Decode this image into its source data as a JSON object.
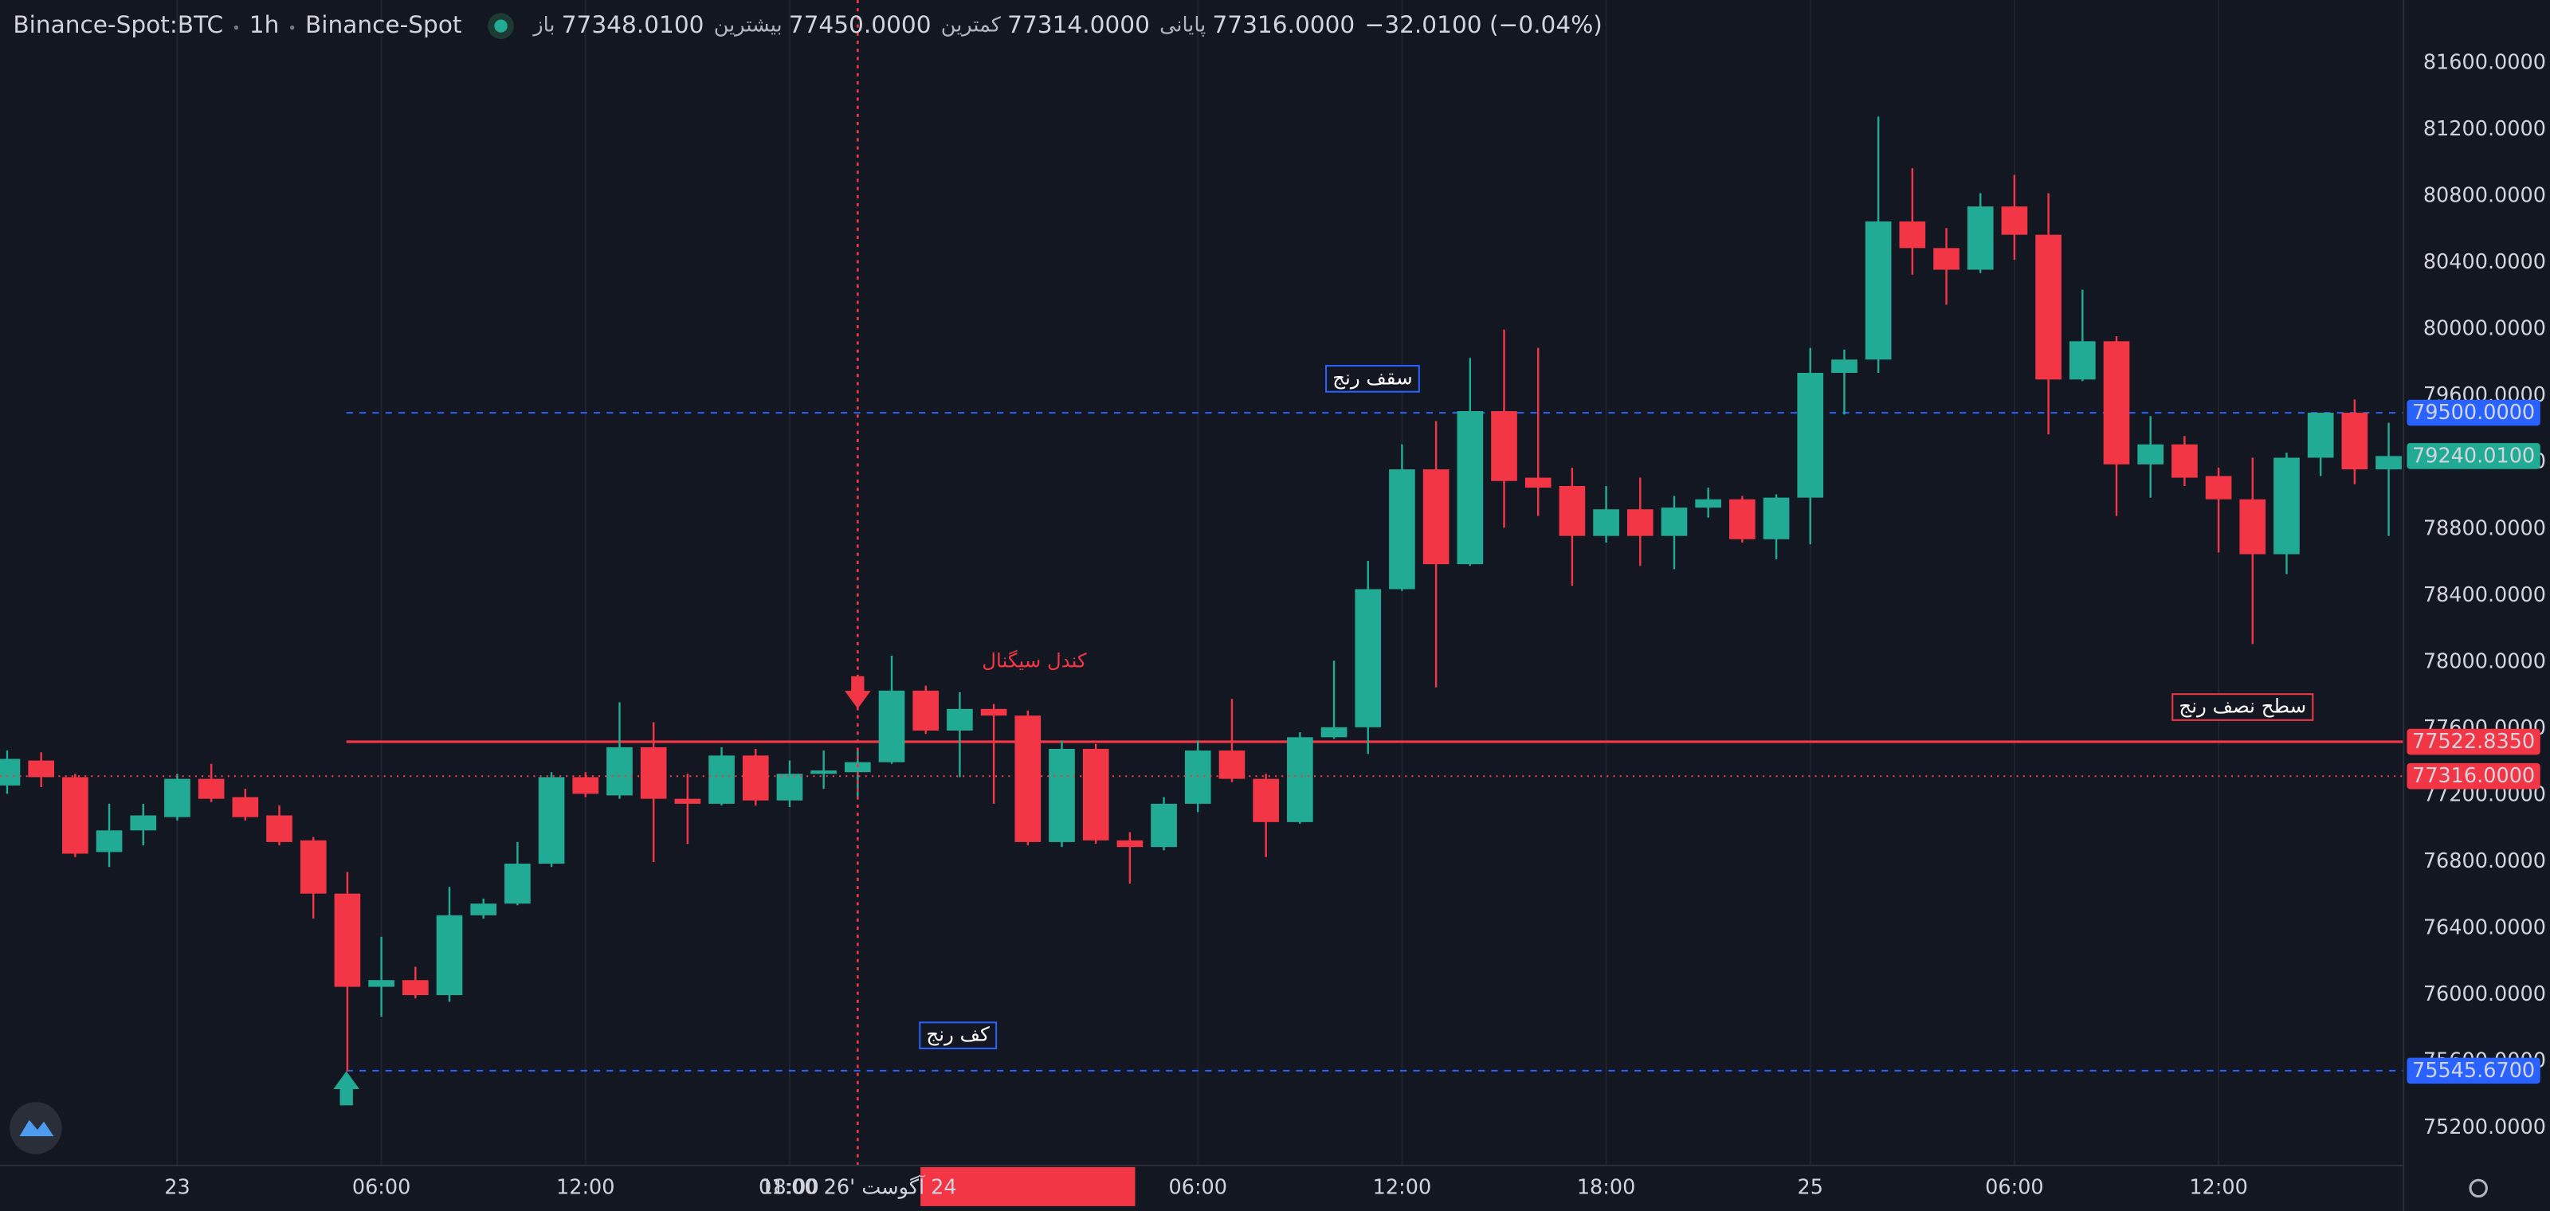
{
  "header": {
    "symbol": "Binance-Spot:BTC",
    "interval": "1h",
    "exchange": "Binance-Spot",
    "ohlc": [
      {
        "label": "باز",
        "value": "77348.0100"
      },
      {
        "label": "بیشترین",
        "value": "77450.0000"
      },
      {
        "label": "کمترین",
        "value": "77314.0000"
      },
      {
        "label": "پایانی",
        "value": "77316.0000"
      }
    ],
    "change": "−32.0100 (−0.04%)"
  },
  "chart_data": {
    "type": "candlestick",
    "up_color": "#22ab94",
    "down_color": "#f23645",
    "grid": true,
    "categories": [
      null,
      null,
      null,
      null,
      null,
      "23",
      null,
      null,
      null,
      null,
      null,
      "06:00",
      null,
      null,
      null,
      null,
      null,
      "12:00",
      null,
      null,
      null,
      null,
      null,
      "18:00",
      null,
      null,
      null,
      null,
      null,
      null,
      null,
      null,
      null,
      null,
      null,
      "06:00",
      null,
      null,
      null,
      null,
      null,
      "12:00",
      null,
      null,
      null,
      null,
      null,
      "18:00",
      null,
      null,
      null,
      null,
      null,
      "25",
      null,
      null,
      null,
      null,
      null,
      "06:00",
      null,
      null,
      null,
      null,
      null,
      "12:00",
      null,
      null,
      null,
      null,
      null
    ],
    "open": [
      77260,
      77410,
      77310,
      76860,
      76990,
      77070,
      77300,
      77190,
      77080,
      76930,
      76610,
      76050,
      76090,
      76000,
      76480,
      76550,
      76790,
      77310,
      77200,
      77490,
      77180,
      77150,
      77440,
      77170,
      77330,
      77340,
      77400,
      77830,
      77590,
      77720,
      77680,
      76920,
      77480,
      76930,
      76890,
      77150,
      77470,
      77300,
      77040,
      77550,
      77610,
      78440,
      79160,
      78590,
      79510,
      79110,
      79060,
      78760,
      78920,
      78760,
      78930,
      78980,
      78740,
      78990,
      79740,
      79820,
      80650,
      80490,
      80360,
      80740,
      80570,
      79700,
      79930,
      79190,
      79310,
      79120,
      78980,
      78650,
      79230,
      79500,
      79160
    ],
    "high": [
      77470,
      77460,
      77330,
      77150,
      77150,
      77330,
      77390,
      77240,
      77140,
      76950,
      76740,
      76350,
      76170,
      76650,
      76580,
      76920,
      77340,
      77340,
      77760,
      77640,
      77330,
      77490,
      77480,
      77410,
      77470,
      77470,
      78040,
      77860,
      77820,
      77750,
      77710,
      77530,
      77510,
      76980,
      77190,
      77530,
      77780,
      77330,
      77580,
      78010,
      78610,
      79310,
      79450,
      79830,
      80000,
      79890,
      79170,
      79060,
      79110,
      79000,
      79050,
      79000,
      79010,
      79890,
      79880,
      81280,
      80970,
      80610,
      80820,
      80930,
      80820,
      80240,
      79960,
      79480,
      79360,
      79170,
      79230,
      79260,
      79500,
      79580,
      79440
    ],
    "low": [
      77210,
      77250,
      76830,
      76770,
      76900,
      77050,
      77160,
      77050,
      76900,
      76460,
      75540,
      75870,
      75980,
      75960,
      76460,
      76540,
      76770,
      77190,
      77180,
      76800,
      76910,
      77140,
      77140,
      77130,
      77240,
      77190,
      77390,
      77570,
      77310,
      77150,
      76900,
      76890,
      76910,
      76670,
      76870,
      77100,
      77280,
      76830,
      77030,
      77540,
      77450,
      78430,
      77850,
      78580,
      78810,
      78880,
      78460,
      78720,
      78580,
      78560,
      78870,
      78720,
      78620,
      78710,
      79490,
      79740,
      80330,
      80150,
      80340,
      80420,
      79370,
      79690,
      78880,
      78990,
      79060,
      78660,
      78110,
      78530,
      79120,
      79070,
      78760
    ],
    "close": [
      77420,
      77310,
      76850,
      76990,
      77080,
      77300,
      77180,
      77070,
      76920,
      76610,
      76050,
      76090,
      76000,
      76480,
      76550,
      76790,
      77310,
      77210,
      77490,
      77180,
      77150,
      77440,
      77170,
      77330,
      77350,
      77400,
      77830,
      77590,
      77720,
      77680,
      76920,
      77480,
      76930,
      76890,
      77150,
      77470,
      77300,
      77040,
      77550,
      77610,
      78440,
      79160,
      78590,
      79510,
      79090,
      79050,
      78760,
      78920,
      78760,
      78930,
      78980,
      78740,
      78990,
      79740,
      79820,
      80650,
      80490,
      80360,
      80740,
      80570,
      79700,
      79930,
      79190,
      79310,
      79110,
      78980,
      78650,
      79230,
      79500,
      79160,
      79240.01
    ],
    "ylim": [
      74976,
      81981
    ],
    "yticks": [
      {
        "value": 75200,
        "label": "75200.0000"
      },
      {
        "value": 75600,
        "label": "75600.0000"
      },
      {
        "value": 76000,
        "label": "76000.0000"
      },
      {
        "value": 76400,
        "label": "76400.0000"
      },
      {
        "value": 76800,
        "label": "76800.0000"
      },
      {
        "value": 77200,
        "label": "77200.0000"
      },
      {
        "value": 77600,
        "label": "77600.0000"
      },
      {
        "value": 78000,
        "label": "78000.0000"
      },
      {
        "value": 78400,
        "label": "78400.0000"
      },
      {
        "value": 78800,
        "label": "78800.0000"
      },
      {
        "value": 79200,
        "label": "79200.0000"
      },
      {
        "value": 79600,
        "label": "79600.0000"
      },
      {
        "value": 80000,
        "label": "80000.0000"
      },
      {
        "value": 80400,
        "label": "80400.0000"
      },
      {
        "value": 80800,
        "label": "80800.0000"
      },
      {
        "value": 81200,
        "label": "81200.0000"
      },
      {
        "value": 81600,
        "label": "81600.0000"
      }
    ],
    "levels": [
      {
        "value": 79500,
        "label": "79500.0000",
        "color": "#2962ff",
        "style": "dashed"
      },
      {
        "value": 77522.835,
        "label": "77522.8350",
        "color": "#f23645",
        "style": "solid"
      },
      {
        "value": 75545.67,
        "label": "75545.6700",
        "color": "#2962ff",
        "style": "dashed"
      }
    ],
    "last_price": {
      "value": 79240.01,
      "label": "79240.0100",
      "color": "#22ab94"
    },
    "crosshair": {
      "value": 77316,
      "label": "77316.0000",
      "time": "24 آگوست '26 01:00",
      "color": "#f23645"
    },
    "annotations": [
      {
        "text": "سقف رنج",
        "color": "#2962ff"
      },
      {
        "text": "کف رنج",
        "color": "#2962ff"
      },
      {
        "text": "سطح نصف رنج",
        "color": "#f23645"
      },
      {
        "text": "کندل سیگنال",
        "color": "#f23645"
      }
    ]
  }
}
